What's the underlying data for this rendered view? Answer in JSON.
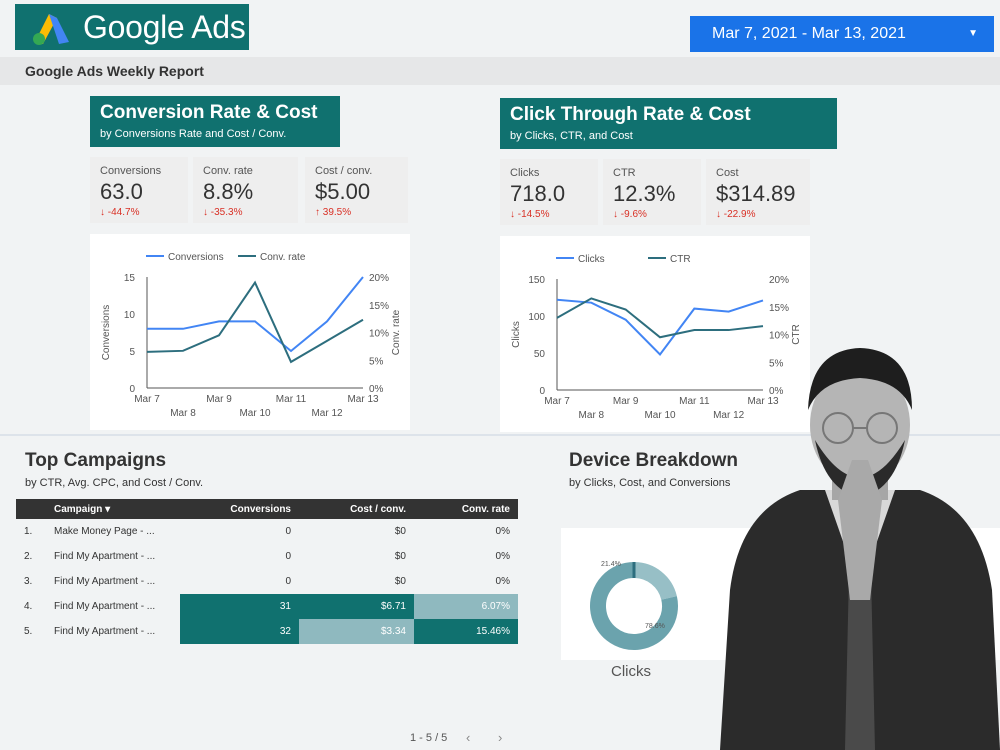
{
  "header": {
    "logo_text": "Google Ads",
    "date_range": "Mar 7, 2021 - Mar 13, 2021",
    "report_title": "Google Ads Weekly Report"
  },
  "conversion": {
    "title": "Conversion Rate & Cost",
    "subtitle": "by Conversions Rate and Cost / Conv.",
    "kpis": [
      {
        "label": "Conversions",
        "value": "63.0",
        "delta": "↓ -44.7%"
      },
      {
        "label": "Conv. rate",
        "value": "8.8%",
        "delta": "↓ -35.3%"
      },
      {
        "label": "Cost / conv.",
        "value": "$5.00",
        "delta": "↑ 39.5%"
      }
    ]
  },
  "ctr": {
    "title": "Click Through Rate & Cost",
    "subtitle": "by Clicks, CTR, and Cost",
    "kpis": [
      {
        "label": "Clicks",
        "value": "718.0",
        "delta": "↓ -14.5%"
      },
      {
        "label": "CTR",
        "value": "12.3%",
        "delta": "↓ -9.6%"
      },
      {
        "label": "Cost",
        "value": "$314.89",
        "delta": "↓ -22.9%"
      }
    ]
  },
  "chart_data": [
    {
      "type": "line",
      "x": [
        "Mar 7",
        "Mar 8",
        "Mar 9",
        "Mar 10",
        "Mar 11",
        "Mar 12",
        "Mar 13"
      ],
      "legend": [
        "Conversions",
        "Conv. rate"
      ],
      "ylabel": "Conversions",
      "y2label": "Conv. rate",
      "yticks": [
        "0",
        "5",
        "10",
        "15"
      ],
      "y2ticks": [
        "0%",
        "5%",
        "10%",
        "15%",
        "20%"
      ],
      "ylim": [
        0,
        15
      ],
      "y2lim": [
        0,
        20
      ],
      "series": [
        {
          "name": "Conversions",
          "axis": "left",
          "color": "#4285f4",
          "values": [
            8,
            8,
            9,
            9,
            5,
            9,
            15
          ]
        },
        {
          "name": "Conv. rate",
          "axis": "right",
          "color": "#2d6e7e",
          "values": [
            6.5,
            6.7,
            9.5,
            19,
            4.7,
            8.5,
            12.3
          ]
        }
      ]
    },
    {
      "type": "line",
      "x": [
        "Mar 7",
        "Mar 8",
        "Mar 9",
        "Mar 10",
        "Mar 11",
        "Mar 12",
        "Mar 13"
      ],
      "legend": [
        "Clicks",
        "CTR"
      ],
      "ylabel": "Clicks",
      "y2label": "CTR",
      "yticks": [
        "0",
        "50",
        "100",
        "150"
      ],
      "y2ticks": [
        "0%",
        "5%",
        "10%",
        "15%",
        "20%"
      ],
      "ylim": [
        0,
        150
      ],
      "y2lim": [
        0,
        20
      ],
      "series": [
        {
          "name": "Clicks",
          "axis": "left",
          "color": "#4285f4",
          "values": [
            122,
            118,
            95,
            48,
            110,
            106,
            121
          ]
        },
        {
          "name": "CTR",
          "axis": "right",
          "color": "#2d6e7e",
          "values": [
            13,
            16.5,
            14.5,
            9.5,
            10.8,
            10.8,
            11.5
          ]
        }
      ]
    },
    {
      "type": "pie",
      "donut": true,
      "values": [
        21.4,
        78.6
      ],
      "slice_labels": [
        "21.4%",
        "78.6%"
      ],
      "colors": [
        "#97bfc6",
        "#6ba3ad"
      ]
    }
  ],
  "campaigns": {
    "title": "Top Campaigns",
    "subtitle": "by CTR, Avg. CPC, and Cost / Conv.",
    "headers": [
      "Campaign ▾",
      "Conversions",
      "Cost / conv.",
      "Conv. rate"
    ],
    "rows": [
      {
        "n": "1.",
        "name": "Make Money Page - ...",
        "conv": "0",
        "cost": "$0",
        "rate": "0%"
      },
      {
        "n": "2.",
        "name": "Find My Apartment - ...",
        "conv": "0",
        "cost": "$0",
        "rate": "0%"
      },
      {
        "n": "3.",
        "name": "Find My Apartment - ...",
        "conv": "0",
        "cost": "$0",
        "rate": "0%"
      },
      {
        "n": "4.",
        "name": "Find My Apartment - ...",
        "conv": "31",
        "cost": "$6.71",
        "rate": "6.07%"
      },
      {
        "n": "5.",
        "name": "Find My Apartment - ...",
        "conv": "32",
        "cost": "$3.34",
        "rate": "15.46%"
      }
    ],
    "pager": "1 - 5 / 5"
  },
  "device": {
    "title": "Device Breakdown",
    "subtitle": "by Clicks, Cost, and Conversions",
    "donut_label": "Clicks",
    "donut_label_partial": "s"
  },
  "colors": {
    "teal": "#10716f",
    "blue": "#1a73e8",
    "dark_teal_cell": "#10716f",
    "light_teal_cell": "#6ba3ad",
    "mid_teal_cell": "#8fb9bf"
  }
}
